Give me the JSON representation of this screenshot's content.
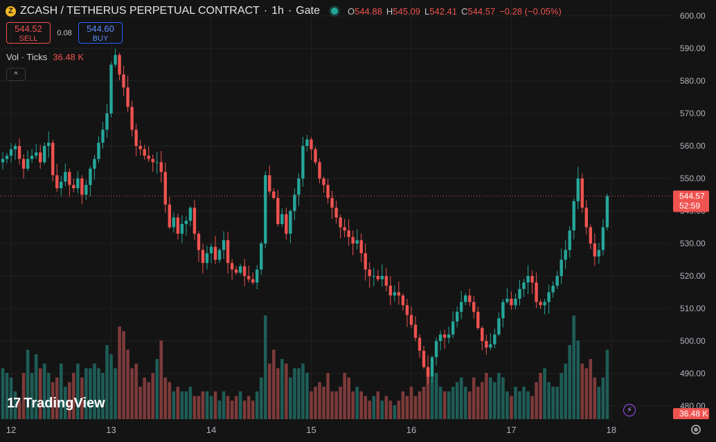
{
  "header": {
    "coin_icon_glyph": "Z",
    "symbol": "ZCASH / TETHERUS PERPETUAL CONTRACT",
    "interval": "1h",
    "exchange": "Gate",
    "sep": "·",
    "ohlc": {
      "o_label": "O",
      "o": "544.88",
      "h_label": "H",
      "h": "545.09",
      "l_label": "L",
      "l": "542.41",
      "c_label": "C",
      "c": "544.57",
      "change": "−0.28 (−0.05%)"
    }
  },
  "trade": {
    "sell_price": "544.52",
    "sell_label": "SELL",
    "spread": "0.08",
    "buy_price": "544.60",
    "buy_label": "BUY"
  },
  "volume_legend": {
    "label": "Vol · Ticks",
    "value": "36.48 K"
  },
  "collapse_glyph": "^",
  "logo": {
    "mark": "17",
    "text": "TradingView"
  },
  "flash_glyph": "⚡",
  "colors": {
    "up": "#26a69a",
    "down": "#ef5350",
    "background": "#141414",
    "grid": "#222222",
    "axis_text": "#b2b5be"
  },
  "chart_data": {
    "type": "candlestick",
    "symbol": "ZCASH / TETHERUS PERPETUAL CONTRACT",
    "ylim": [
      476,
      603
    ],
    "y_ticks": [
      "480.00",
      "490.00",
      "500.00",
      "510.00",
      "520.00",
      "530.00",
      "540.00",
      "550.00",
      "560.00",
      "570.00",
      "580.00",
      "590.00",
      "600.00"
    ],
    "x_ticks": [
      {
        "label": "12",
        "bar": 2
      },
      {
        "label": "13",
        "bar": 26
      },
      {
        "label": "14",
        "bar": 50
      },
      {
        "label": "15",
        "bar": 74
      },
      {
        "label": "16",
        "bar": 98
      },
      {
        "label": "17",
        "bar": 122
      },
      {
        "label": "18",
        "bar": 146
      }
    ],
    "last_price": {
      "value": 544.57,
      "label": "544.57",
      "countdown": "52:59"
    },
    "last_volume_label": "36.48 K",
    "close": [
      556,
      557,
      559,
      560,
      556,
      553,
      556,
      557,
      558,
      555,
      560,
      561,
      551,
      547,
      549,
      552,
      548,
      547,
      550,
      545,
      548,
      553,
      556,
      561,
      565,
      570,
      585,
      588,
      582,
      578,
      572,
      565,
      560,
      559,
      557,
      556,
      555,
      555,
      552,
      542,
      535,
      538,
      533,
      536,
      537,
      541,
      533,
      528,
      524,
      527,
      529,
      525,
      528,
      531,
      524,
      522,
      521,
      523,
      520,
      519,
      518,
      522,
      530,
      551,
      546,
      544,
      536,
      539,
      533,
      540,
      545,
      550,
      560,
      562,
      559,
      555,
      550,
      548,
      544,
      541,
      538,
      535,
      534,
      532,
      530,
      531,
      527,
      522,
      520,
      520,
      519,
      520,
      517,
      514,
      515,
      514,
      511,
      508,
      505,
      501,
      497,
      492,
      489,
      495,
      500,
      502,
      501,
      502,
      506,
      509,
      512,
      514,
      512,
      509,
      504,
      500,
      498,
      499,
      502,
      507,
      512,
      513,
      511,
      513,
      516,
      518,
      520,
      518,
      512,
      511,
      512,
      515,
      517,
      520,
      525,
      528,
      534,
      543,
      550,
      541,
      535,
      530,
      526,
      528,
      535,
      544.57
    ],
    "volume_units": "relative (0–1)",
    "volume": [
      0.55,
      0.5,
      0.45,
      0.3,
      0.2,
      0.5,
      0.75,
      0.5,
      0.7,
      0.55,
      0.6,
      0.5,
      0.4,
      0.45,
      0.6,
      0.35,
      0.4,
      0.5,
      0.6,
      0.45,
      0.55,
      0.55,
      0.6,
      0.55,
      0.5,
      0.8,
      0.7,
      0.55,
      1.0,
      0.95,
      0.75,
      0.55,
      0.6,
      0.35,
      0.45,
      0.4,
      0.5,
      0.65,
      0.85,
      0.45,
      0.4,
      0.3,
      0.35,
      0.3,
      0.3,
      0.35,
      0.25,
      0.25,
      0.3,
      0.3,
      0.25,
      0.3,
      0.2,
      0.3,
      0.25,
      0.2,
      0.25,
      0.3,
      0.2,
      0.25,
      0.2,
      0.3,
      0.45,
      1.12,
      0.6,
      0.75,
      0.55,
      0.65,
      0.6,
      0.45,
      0.55,
      0.55,
      0.6,
      0.5,
      0.3,
      0.35,
      0.4,
      0.35,
      0.5,
      0.3,
      0.3,
      0.35,
      0.5,
      0.45,
      0.3,
      0.35,
      0.3,
      0.25,
      0.2,
      0.25,
      0.3,
      0.2,
      0.25,
      0.2,
      0.15,
      0.2,
      0.3,
      0.25,
      0.35,
      0.25,
      0.3,
      0.35,
      0.55,
      0.45,
      0.5,
      0.35,
      0.3,
      0.3,
      0.35,
      0.4,
      0.45,
      0.35,
      0.3,
      0.45,
      0.35,
      0.4,
      0.5,
      0.45,
      0.4,
      0.5,
      0.45,
      0.3,
      0.25,
      0.35,
      0.3,
      0.35,
      0.3,
      0.25,
      0.4,
      0.5,
      0.55,
      0.4,
      0.35,
      0.35,
      0.5,
      0.6,
      0.8,
      1.12,
      0.85,
      0.6,
      0.55,
      0.65,
      0.45,
      0.35,
      0.45,
      0.75
    ]
  }
}
